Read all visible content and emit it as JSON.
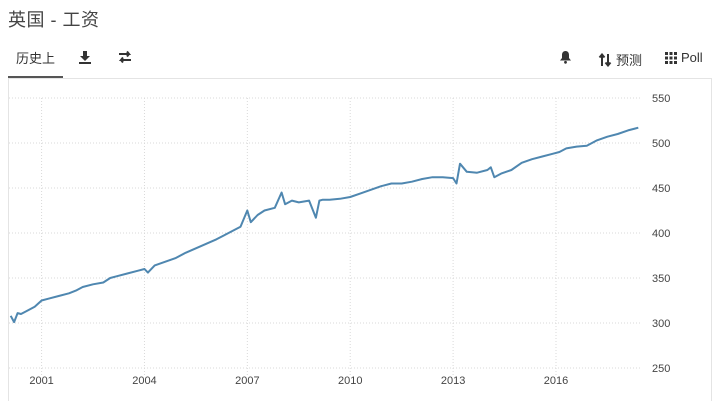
{
  "page": {
    "title": "英国 - 工资"
  },
  "toolbar": {
    "history_tab": "历史上",
    "download_icon": "download-icon",
    "compare_icon": "compare-arrows-icon",
    "alert_icon": "bell-icon",
    "forecast_label": "预测",
    "poll_label": "Poll"
  },
  "chart_data": {
    "type": "line",
    "xlabel": "",
    "ylabel": "",
    "x_ticks": [
      "2001",
      "2004",
      "2007",
      "2010",
      "2013",
      "2016"
    ],
    "y_ticks": [
      "250",
      "300",
      "350",
      "400",
      "450",
      "500",
      "550"
    ],
    "xlim": [
      2000.05,
      2018.45
    ],
    "ylim": [
      250,
      550
    ],
    "grid": true,
    "line_color": "#4f87b0",
    "series": [
      {
        "x": [
          2000.1,
          2000.2,
          2000.3,
          2000.4,
          2000.6,
          2000.8,
          2001.0,
          2001.2,
          2001.5,
          2001.8,
          2002.0,
          2002.2,
          2002.5,
          2002.8,
          2003.0,
          2003.2,
          2003.5,
          2003.8,
          2004.0,
          2004.1,
          2004.3,
          2004.6,
          2004.9,
          2005.2,
          2005.5,
          2005.8,
          2006.1,
          2006.3,
          2006.5,
          2006.8,
          2007.0,
          2007.1,
          2007.3,
          2007.5,
          2007.8,
          2008.0,
          2008.1,
          2008.3,
          2008.5,
          2008.8,
          2009.0,
          2009.1,
          2009.2,
          2009.4,
          2009.7,
          2010.0,
          2010.3,
          2010.6,
          2010.9,
          2011.2,
          2011.5,
          2011.8,
          2012.1,
          2012.4,
          2012.7,
          2013.0,
          2013.1,
          2013.2,
          2013.4,
          2013.7,
          2014.0,
          2014.1,
          2014.2,
          2014.4,
          2014.7,
          2015.0,
          2015.3,
          2015.6,
          2015.9,
          2016.1,
          2016.3,
          2016.6,
          2016.9,
          2017.2,
          2017.5,
          2017.8,
          2018.1,
          2018.4
        ],
        "y": [
          308,
          301,
          311,
          310,
          314,
          318,
          325,
          327,
          330,
          333,
          336,
          340,
          343,
          345,
          350,
          352,
          355,
          358,
          360,
          356,
          364,
          368,
          372,
          378,
          383,
          388,
          393,
          397,
          401,
          407,
          425,
          412,
          420,
          425,
          428,
          445,
          432,
          436,
          434,
          436,
          417,
          436,
          437,
          437,
          438,
          440,
          444,
          448,
          452,
          455,
          455,
          457,
          460,
          462,
          462,
          461,
          455,
          477,
          468,
          467,
          470,
          473,
          462,
          466,
          470,
          478,
          482,
          485,
          488,
          490,
          494,
          496,
          497,
          503,
          507,
          510,
          514,
          517
        ]
      }
    ]
  }
}
